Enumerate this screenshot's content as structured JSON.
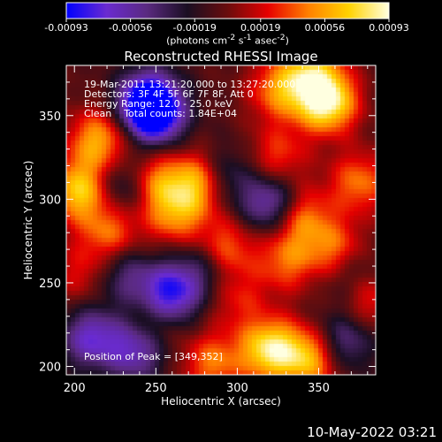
{
  "chart_data": {
    "type": "heatmap",
    "title": "Reconstructed RHESSI Image",
    "xlabel": "Heliocentric X (arcsec)",
    "ylabel": "Heliocentric Y (arcsec)",
    "xlim": [
      195,
      385
    ],
    "ylim": [
      195,
      380
    ],
    "x_ticks": [
      200,
      250,
      300,
      350
    ],
    "y_ticks": [
      200,
      250,
      300,
      350
    ],
    "colorbar": {
      "label_html": "(photons cm<sup>-2</sup> s<sup>-1</sup> asec<sup>-2</sup>)",
      "range": [
        -0.00093,
        0.00093
      ],
      "tick_labels": [
        "-0.00093",
        "-0.00056",
        "-0.00019",
        "0.00019",
        "0.00056",
        "0.00093"
      ],
      "colormap": [
        "#0000ff",
        "#6a2bd0",
        "#5a2a80",
        "#1a0e22",
        "#6a0d0d",
        "#e60000",
        "#ff8000",
        "#ffd200",
        "#ffffe0"
      ]
    },
    "annotations": [
      "19-Mar-2011 13:21:20.000 to 13:27:20.000",
      "Detectors: 3F 4F 5F 6F 7F 8F, Att 0",
      "Energy Range: 12.0 - 25.0 keV",
      "Clean    Total counts: 1.84E+04"
    ],
    "peak_label": "Position of Peak = [349,352]",
    "peak_position": [
      349,
      352
    ],
    "intensity_sources": [
      {
        "x": 355,
        "y": 358,
        "value": 0.00093
      },
      {
        "x": 345,
        "y": 375,
        "value": 0.0006
      },
      {
        "x": 325,
        "y": 365,
        "value": 0.0005
      },
      {
        "x": 215,
        "y": 335,
        "value": 0.00065
      },
      {
        "x": 203,
        "y": 305,
        "value": 0.00075
      },
      {
        "x": 248,
        "y": 310,
        "value": 0.0006
      },
      {
        "x": 277,
        "y": 310,
        "value": 0.0008
      },
      {
        "x": 262,
        "y": 290,
        "value": 0.0005
      },
      {
        "x": 222,
        "y": 280,
        "value": 0.0005
      },
      {
        "x": 292,
        "y": 270,
        "value": 0.00055
      },
      {
        "x": 338,
        "y": 290,
        "value": 0.0006
      },
      {
        "x": 325,
        "y": 325,
        "value": 0.0004
      },
      {
        "x": 375,
        "y": 310,
        "value": 0.0005
      },
      {
        "x": 360,
        "y": 270,
        "value": 0.0005
      },
      {
        "x": 330,
        "y": 263,
        "value": 0.00045
      },
      {
        "x": 380,
        "y": 240,
        "value": 0.0004
      },
      {
        "x": 205,
        "y": 255,
        "value": 0.0003
      },
      {
        "x": 250,
        "y": 228,
        "value": 0.00035
      },
      {
        "x": 300,
        "y": 240,
        "value": 0.0003
      },
      {
        "x": 320,
        "y": 210,
        "value": 0.00085
      },
      {
        "x": 345,
        "y": 205,
        "value": 0.0007
      },
      {
        "x": 285,
        "y": 202,
        "value": 0.0005
      },
      {
        "x": 245,
        "y": 358,
        "value": -0.0009
      },
      {
        "x": 250,
        "y": 350,
        "value": -0.0007
      },
      {
        "x": 322,
        "y": 297,
        "value": -0.0007
      },
      {
        "x": 290,
        "y": 313,
        "value": -0.0005
      },
      {
        "x": 232,
        "y": 308,
        "value": -0.0005
      },
      {
        "x": 258,
        "y": 242,
        "value": -0.00088
      },
      {
        "x": 210,
        "y": 217,
        "value": -0.0006
      },
      {
        "x": 238,
        "y": 210,
        "value": -0.0006
      },
      {
        "x": 365,
        "y": 215,
        "value": -0.0005
      },
      {
        "x": 280,
        "y": 260,
        "value": -0.0004
      },
      {
        "x": 230,
        "y": 255,
        "value": -0.0004
      },
      {
        "x": 370,
        "y": 255,
        "value": -0.0003
      }
    ]
  },
  "footer": {
    "timestamp": "10-May-2022 03:21"
  }
}
